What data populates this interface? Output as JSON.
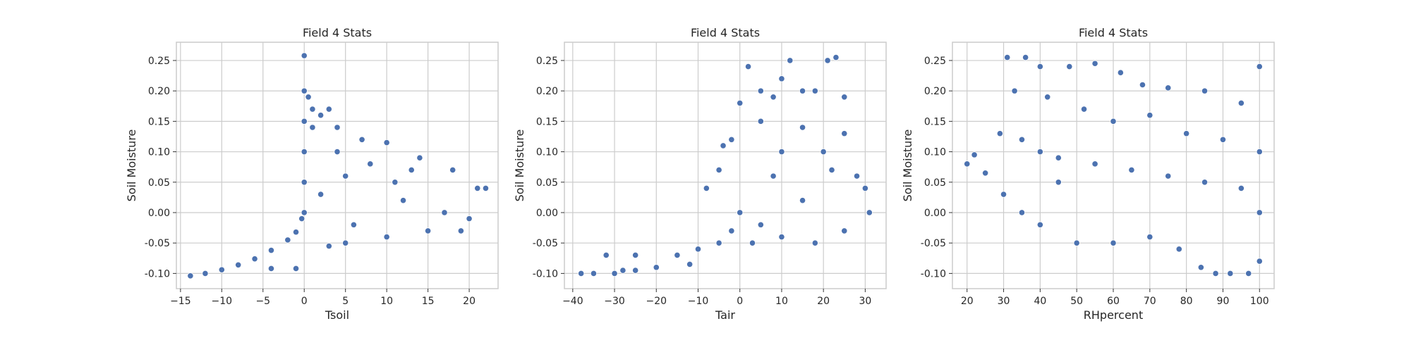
{
  "colors": {
    "point_fill": "#4c72b0",
    "point_edge": "#ffffff",
    "grid": "#cccccc",
    "text": "#262626"
  },
  "chart_data": [
    {
      "type": "scatter",
      "title": "Field 4 Stats",
      "xlabel": "Tsoil",
      "ylabel": "Soil Moisture",
      "xlim": [
        -15.5,
        23.5
      ],
      "ylim": [
        -0.125,
        0.28
      ],
      "xticks": [
        -15,
        -10,
        -5,
        0,
        5,
        10,
        15,
        20
      ],
      "yticks": [
        -0.1,
        -0.05,
        0.0,
        0.05,
        0.1,
        0.15,
        0.2,
        0.25
      ],
      "grid": true,
      "series": [
        {
          "points": [
            [
              -13.8,
              -0.104
            ],
            [
              -12,
              -0.1
            ],
            [
              -10,
              -0.094
            ],
            [
              -8,
              -0.086
            ],
            [
              -6,
              -0.076
            ],
            [
              -4,
              -0.062
            ],
            [
              -2,
              -0.045
            ],
            [
              -1,
              -0.032
            ],
            [
              -0.3,
              -0.01
            ],
            [
              0,
              0.0
            ],
            [
              0,
              0.05
            ],
            [
              0,
              0.1
            ],
            [
              0,
              0.15
            ],
            [
              0,
              0.2
            ],
            [
              0,
              0.258
            ],
            [
              0.5,
              0.19
            ],
            [
              1,
              0.17
            ],
            [
              2,
              0.16
            ],
            [
              3,
              0.17
            ],
            [
              1,
              0.14
            ],
            [
              4,
              0.14
            ],
            [
              7,
              0.12
            ],
            [
              10,
              0.115
            ],
            [
              14,
              0.09
            ],
            [
              18,
              0.07
            ],
            [
              21,
              0.04
            ],
            [
              22,
              0.04
            ],
            [
              20,
              -0.01
            ],
            [
              15,
              -0.03
            ],
            [
              10,
              -0.04
            ],
            [
              5,
              -0.05
            ],
            [
              3,
              -0.055
            ],
            [
              -4,
              -0.092
            ],
            [
              -1,
              -0.092
            ],
            [
              2,
              0.03
            ],
            [
              5,
              0.06
            ],
            [
              12,
              0.02
            ],
            [
              8,
              0.08
            ],
            [
              17,
              0.0
            ],
            [
              6,
              -0.02
            ],
            [
              11,
              0.05
            ],
            [
              19,
              -0.03
            ],
            [
              4,
              0.1
            ],
            [
              13,
              0.07
            ]
          ]
        }
      ]
    },
    {
      "type": "scatter",
      "title": "Field 4 Stats",
      "xlabel": "Tair",
      "ylabel": "Soil Moisture",
      "xlim": [
        -42,
        35
      ],
      "ylim": [
        -0.125,
        0.28
      ],
      "xticks": [
        -40,
        -30,
        -20,
        -10,
        0,
        10,
        20,
        30
      ],
      "yticks": [
        -0.1,
        -0.05,
        0.0,
        0.05,
        0.1,
        0.15,
        0.2,
        0.25
      ],
      "grid": true,
      "series": [
        {
          "points": [
            [
              -38,
              -0.1
            ],
            [
              -35,
              -0.1
            ],
            [
              -30,
              -0.1
            ],
            [
              -25,
              -0.095
            ],
            [
              -20,
              -0.09
            ],
            [
              -32,
              -0.07
            ],
            [
              -25,
              -0.07
            ],
            [
              -15,
              -0.07
            ],
            [
              -10,
              -0.06
            ],
            [
              -5,
              -0.05
            ],
            [
              -2,
              -0.03
            ],
            [
              0,
              0.0
            ],
            [
              -8,
              0.04
            ],
            [
              -5,
              0.07
            ],
            [
              -2,
              0.12
            ],
            [
              0,
              0.18
            ],
            [
              2,
              0.24
            ],
            [
              5,
              0.2
            ],
            [
              8,
              0.19
            ],
            [
              10,
              0.22
            ],
            [
              12,
              0.25
            ],
            [
              15,
              0.2
            ],
            [
              18,
              0.2
            ],
            [
              21,
              0.25
            ],
            [
              23,
              0.255
            ],
            [
              25,
              0.19
            ],
            [
              5,
              0.15
            ],
            [
              15,
              0.14
            ],
            [
              25,
              0.13
            ],
            [
              10,
              0.1
            ],
            [
              20,
              0.1
            ],
            [
              28,
              0.06
            ],
            [
              30,
              0.04
            ],
            [
              31,
              0.0
            ],
            [
              25,
              -0.03
            ],
            [
              18,
              -0.05
            ],
            [
              10,
              -0.04
            ],
            [
              5,
              -0.02
            ],
            [
              15,
              0.02
            ],
            [
              22,
              0.07
            ],
            [
              -4,
              0.11
            ],
            [
              8,
              0.06
            ],
            [
              3,
              -0.05
            ],
            [
              -12,
              -0.085
            ],
            [
              -28,
              -0.095
            ]
          ]
        }
      ]
    },
    {
      "type": "scatter",
      "title": "Field 4 Stats",
      "xlabel": "RHpercent",
      "ylabel": "Soil Moisture",
      "xlim": [
        16,
        104
      ],
      "ylim": [
        -0.125,
        0.28
      ],
      "xticks": [
        20,
        30,
        40,
        50,
        60,
        70,
        80,
        90,
        100
      ],
      "yticks": [
        -0.1,
        -0.05,
        0.0,
        0.05,
        0.1,
        0.15,
        0.2,
        0.25
      ],
      "grid": true,
      "series": [
        {
          "points": [
            [
              31,
              0.255
            ],
            [
              36,
              0.255
            ],
            [
              40,
              0.24
            ],
            [
              48,
              0.24
            ],
            [
              55,
              0.245
            ],
            [
              62,
              0.23
            ],
            [
              68,
              0.21
            ],
            [
              75,
              0.205
            ],
            [
              85,
              0.2
            ],
            [
              95,
              0.18
            ],
            [
              100,
              0.24
            ],
            [
              33,
              0.2
            ],
            [
              42,
              0.19
            ],
            [
              52,
              0.17
            ],
            [
              60,
              0.15
            ],
            [
              70,
              0.16
            ],
            [
              20,
              0.08
            ],
            [
              22,
              0.095
            ],
            [
              25,
              0.065
            ],
            [
              29,
              0.13
            ],
            [
              35,
              0.12
            ],
            [
              40,
              0.1
            ],
            [
              45,
              0.09
            ],
            [
              55,
              0.08
            ],
            [
              65,
              0.07
            ],
            [
              75,
              0.06
            ],
            [
              85,
              0.05
            ],
            [
              95,
              0.04
            ],
            [
              100,
              0.1
            ],
            [
              30,
              0.03
            ],
            [
              35,
              0.0
            ],
            [
              40,
              -0.02
            ],
            [
              50,
              -0.05
            ],
            [
              60,
              -0.05
            ],
            [
              70,
              -0.04
            ],
            [
              78,
              -0.06
            ],
            [
              84,
              -0.09
            ],
            [
              88,
              -0.1
            ],
            [
              92,
              -0.1
            ],
            [
              97,
              -0.1
            ],
            [
              100,
              -0.08
            ],
            [
              100,
              0.0
            ],
            [
              45,
              0.05
            ],
            [
              80,
              0.13
            ],
            [
              90,
              0.12
            ]
          ]
        }
      ]
    }
  ]
}
